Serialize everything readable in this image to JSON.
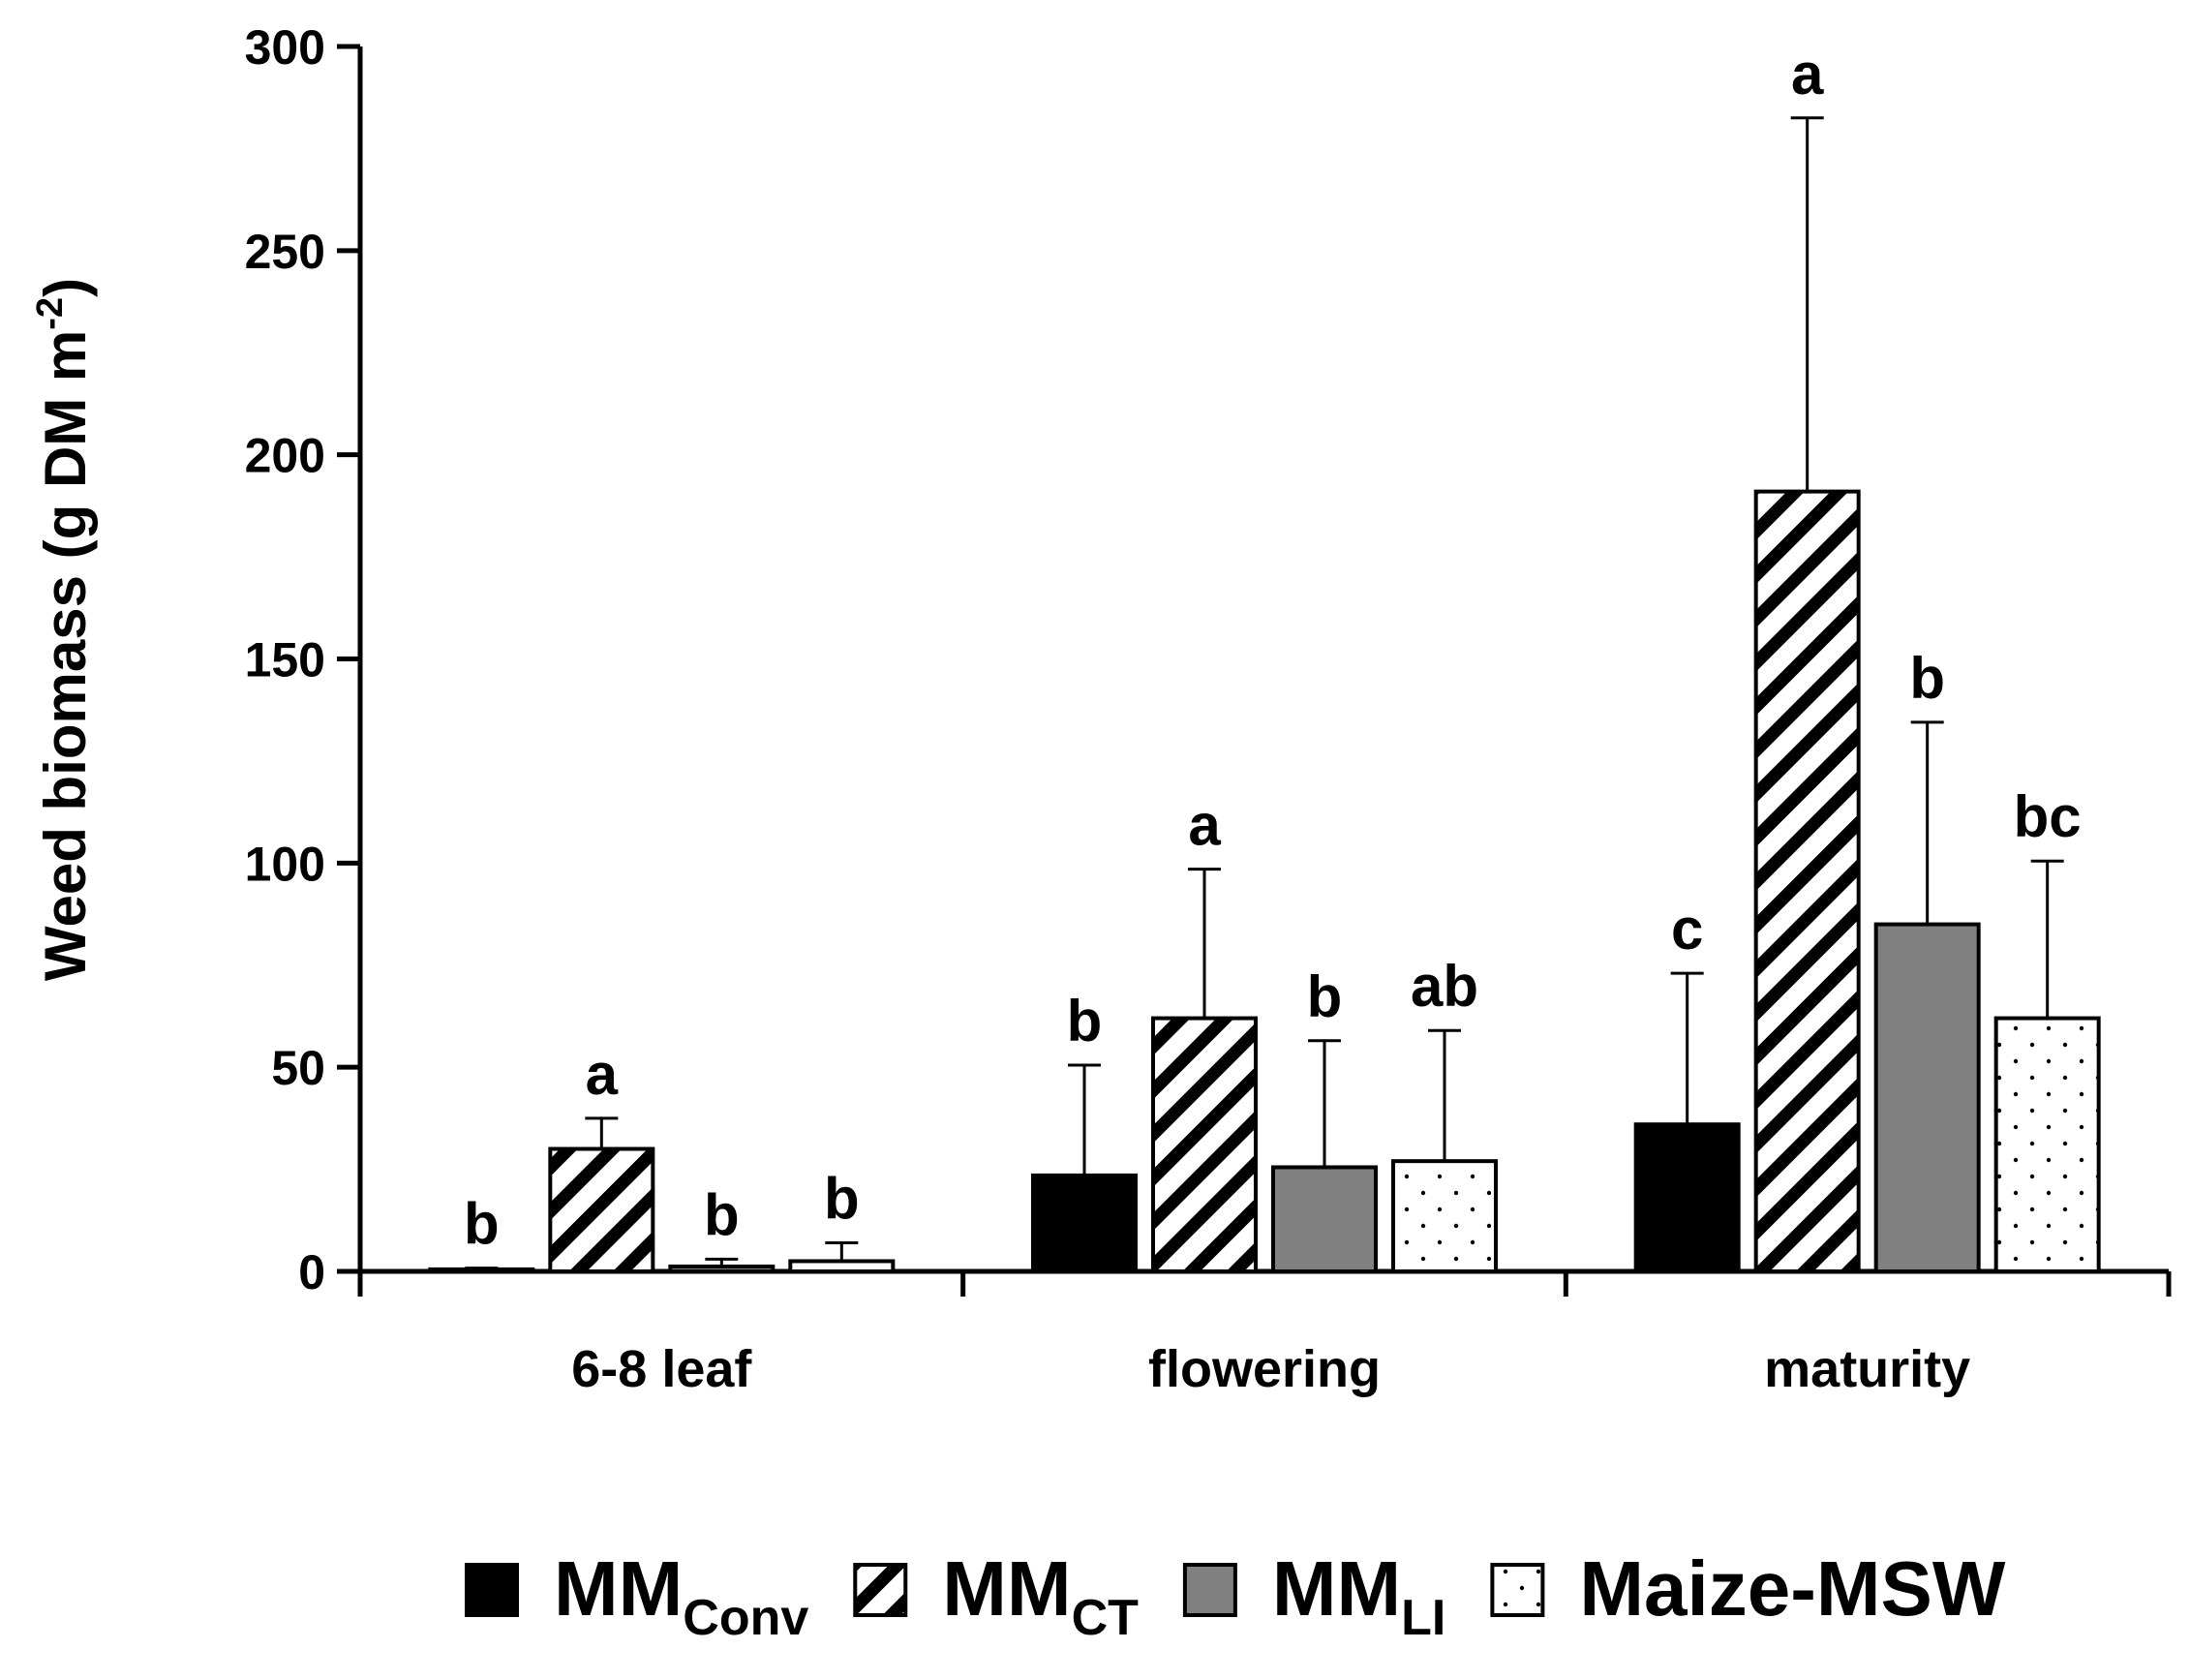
{
  "chart_data": {
    "type": "bar",
    "ylabel": "Weed biomass (g DM m",
    "ylabel_sup": "-2",
    "ylabel_end": ")",
    "ylim": [
      0,
      300
    ],
    "yticks": [
      0,
      50,
      100,
      150,
      200,
      250,
      300
    ],
    "categories": [
      "6-8 leaf",
      "flowering",
      "maturity"
    ],
    "legend_position": "bottom",
    "series": [
      {
        "name": "MM",
        "name_sub": "Conv",
        "pattern": "solid-black",
        "values": [
          0.5,
          23.5,
          36
        ],
        "errors": [
          0.3,
          27,
          37
        ],
        "letters": [
          "b",
          "b",
          "c"
        ]
      },
      {
        "name": "MM",
        "name_sub": "CT",
        "pattern": "diagonal-stripes",
        "values": [
          30,
          62,
          191
        ],
        "errors": [
          7.5,
          36.5,
          91.5
        ],
        "letters": [
          "a",
          "a",
          "a"
        ]
      },
      {
        "name": "MM",
        "name_sub": "LI",
        "pattern": "solid-gray",
        "values": [
          1.2,
          25.5,
          85
        ],
        "errors": [
          1.8,
          31,
          49.5
        ],
        "letters": [
          "b",
          "b",
          "b"
        ]
      },
      {
        "name": "Maize-MSW",
        "name_sub": "",
        "pattern": "dots",
        "values": [
          2.5,
          27,
          62
        ],
        "errors": [
          4.5,
          32,
          38.5
        ],
        "letters": [
          "b",
          "ab",
          "bc"
        ]
      }
    ],
    "colors": {
      "conv": "#000000",
      "li": "#808080",
      "stripe": "#000000",
      "background": "#ffffff"
    }
  }
}
